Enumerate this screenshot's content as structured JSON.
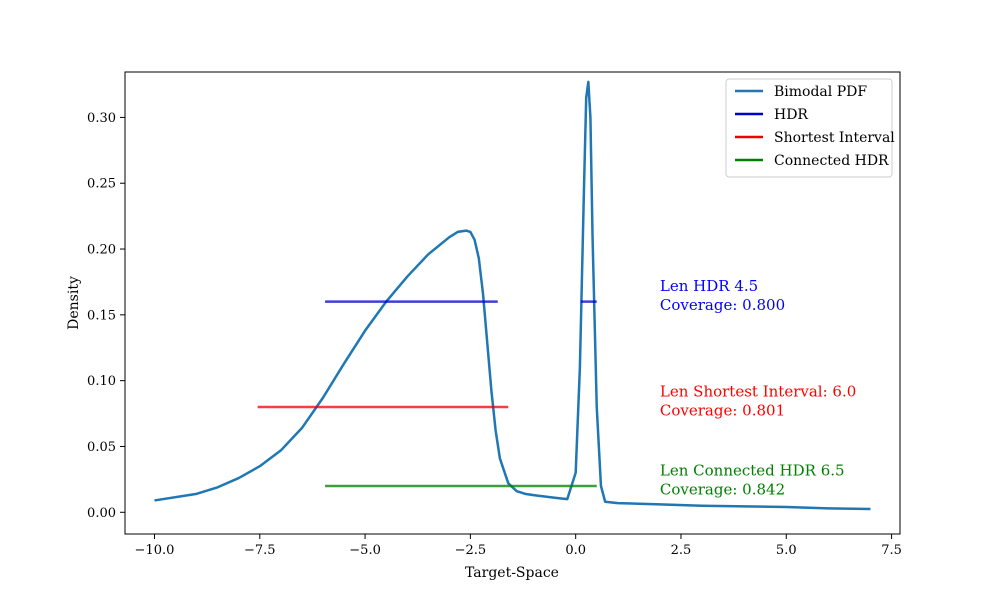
{
  "chart_data": {
    "type": "line",
    "title": "",
    "xlabel": "Target-Space",
    "ylabel": "Density",
    "xlim": [
      -10.7,
      7.7
    ],
    "ylim": [
      -0.0165,
      0.3345
    ],
    "xticks": [
      -10.0,
      -7.5,
      -5.0,
      -2.5,
      0.0,
      2.5,
      5.0,
      7.5
    ],
    "xtick_labels": [
      "−10.0",
      "−7.5",
      "−5.0",
      "−2.5",
      "0.0",
      "2.5",
      "5.0",
      "7.5"
    ],
    "yticks": [
      0.0,
      0.05,
      0.1,
      0.15,
      0.2,
      0.25,
      0.3
    ],
    "ytick_labels": [
      "0.00",
      "0.05",
      "0.10",
      "0.15",
      "0.20",
      "0.25",
      "0.30"
    ],
    "grid": false,
    "legend_position": "top-right",
    "series": [
      {
        "name": "Bimodal PDF",
        "color": "#1f77b4",
        "x": [
          -10.0,
          -9.0,
          -8.5,
          -8.0,
          -7.5,
          -7.0,
          -6.5,
          -6.0,
          -5.5,
          -5.0,
          -4.5,
          -4.0,
          -3.5,
          -3.0,
          -2.8,
          -2.6,
          -2.5,
          -2.4,
          -2.3,
          -2.2,
          -2.1,
          -2.0,
          -1.9,
          -1.8,
          -1.6,
          -1.4,
          -1.2,
          -1.0,
          -0.5,
          -0.2,
          0.0,
          0.1,
          0.2,
          0.25,
          0.3,
          0.35,
          0.4,
          0.5,
          0.6,
          0.7,
          1.0,
          2.0,
          3.0,
          4.0,
          5.0,
          6.0,
          7.0
        ],
        "y": [
          0.009,
          0.014,
          0.019,
          0.026,
          0.035,
          0.047,
          0.064,
          0.087,
          0.113,
          0.138,
          0.16,
          0.179,
          0.196,
          0.209,
          0.213,
          0.214,
          0.213,
          0.207,
          0.193,
          0.166,
          0.129,
          0.092,
          0.062,
          0.041,
          0.022,
          0.016,
          0.014,
          0.013,
          0.011,
          0.01,
          0.03,
          0.11,
          0.25,
          0.315,
          0.327,
          0.3,
          0.21,
          0.08,
          0.02,
          0.008,
          0.007,
          0.006,
          0.005,
          0.0045,
          0.004,
          0.003,
          0.0025
        ]
      },
      {
        "name": "HDR",
        "color": "#0000cc",
        "segments": [
          [
            -5.95,
            -1.85
          ],
          [
            0.12,
            0.5
          ]
        ],
        "y": 0.16
      },
      {
        "name": "Shortest Interval",
        "color": "#ee0000",
        "segments": [
          [
            -7.55,
            -1.6
          ]
        ],
        "y": 0.08
      },
      {
        "name": "Connected HDR",
        "color": "#007f00",
        "segments": [
          [
            -5.95,
            0.5
          ]
        ],
        "y": 0.02
      }
    ],
    "annotations": [
      {
        "lines": [
          "Len HDR 4.5",
          "Coverage: 0.800"
        ],
        "color": "#0000ff",
        "x": 2.0,
        "y": 0.168
      },
      {
        "lines": [
          "Len Shortest Interval: 6.0",
          "Coverage: 0.801"
        ],
        "color": "#ff0000",
        "x": 2.0,
        "y": 0.088
      },
      {
        "lines": [
          "Len Connected HDR 6.5",
          "Coverage: 0.842"
        ],
        "color": "#008000",
        "x": 2.0,
        "y": 0.028
      }
    ]
  }
}
